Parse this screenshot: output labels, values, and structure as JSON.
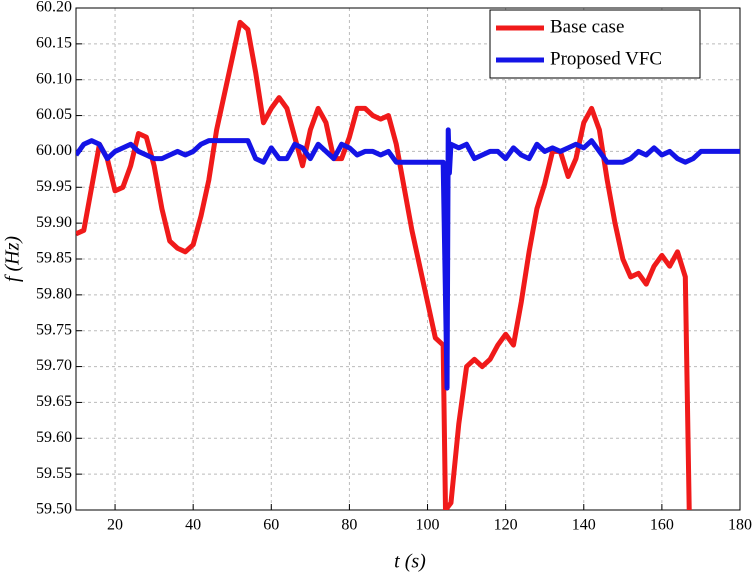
{
  "chart_data": {
    "type": "line",
    "xlabel": "t (s)",
    "ylabel": "f (Hz)",
    "xlim": [
      10,
      180
    ],
    "xticks": [
      20,
      40,
      60,
      80,
      100,
      120,
      140,
      160,
      180
    ],
    "ylim": [
      59.5,
      60.2
    ],
    "yticks": [
      {
        "value": 59.5,
        "label": "59.50"
      },
      59.55,
      {
        "value": 59.6,
        "label": "59.60"
      },
      59.65,
      {
        "value": 59.7,
        "label": "59.70"
      },
      59.75,
      {
        "value": 59.8,
        "label": "59.80"
      },
      59.85,
      {
        "value": 59.9,
        "label": "59.90"
      },
      59.95,
      {
        "value": 60.0,
        "label": "60.00"
      },
      60.05,
      {
        "value": 60.1,
        "label": "60.10"
      },
      60.15,
      {
        "value": 60.2,
        "label": "60.20"
      }
    ],
    "grid": true,
    "legend": "upper right",
    "series": [
      {
        "name": "Base case",
        "color": "#f01a1a",
        "x": [
          10,
          12,
          14,
          16,
          18,
          20,
          22,
          24,
          26,
          28,
          30,
          32,
          34,
          36,
          38,
          40,
          42,
          44,
          46,
          48,
          50,
          52,
          54,
          56,
          58,
          60,
          62,
          64,
          66,
          68,
          70,
          72,
          74,
          76,
          78,
          80,
          82,
          84,
          86,
          88,
          90,
          92,
          94,
          96,
          98,
          100,
          102,
          104,
          104.6,
          106,
          108,
          110,
          112,
          114,
          116,
          118,
          120,
          122,
          124,
          126,
          128,
          130,
          132,
          134,
          136,
          138,
          140,
          142,
          144,
          146,
          148,
          150,
          152,
          154,
          156,
          158,
          160,
          162,
          164,
          166,
          167
        ],
        "values": [
          59.885,
          59.89,
          59.95,
          60.01,
          59.99,
          59.945,
          59.95,
          59.98,
          60.025,
          60.02,
          59.98,
          59.92,
          59.875,
          59.865,
          59.86,
          59.87,
          59.91,
          59.96,
          60.03,
          60.08,
          60.13,
          60.18,
          60.17,
          60.11,
          60.04,
          60.06,
          60.075,
          60.06,
          60.02,
          59.98,
          60.03,
          60.06,
          60.04,
          59.99,
          59.99,
          60.02,
          60.06,
          60.06,
          60.05,
          60.045,
          60.05,
          60.01,
          59.95,
          59.89,
          59.84,
          59.79,
          59.74,
          59.73,
          59.5,
          59.51,
          59.62,
          59.7,
          59.71,
          59.7,
          59.71,
          59.73,
          59.745,
          59.73,
          59.79,
          59.86,
          59.92,
          59.955,
          60.0,
          60.0,
          59.965,
          59.99,
          60.04,
          60.06,
          60.03,
          59.96,
          59.9,
          59.85,
          59.825,
          59.83,
          59.815,
          59.84,
          59.855,
          59.84,
          59.86,
          59.825,
          59.5
        ]
      },
      {
        "name": "Proposed VFC",
        "color": "#1414e6",
        "x": [
          10,
          12,
          14,
          16,
          18,
          20,
          22,
          24,
          26,
          28,
          30,
          32,
          34,
          36,
          38,
          40,
          42,
          44,
          46,
          48,
          50,
          52,
          54,
          56,
          58,
          60,
          62,
          64,
          66,
          68,
          70,
          72,
          74,
          76,
          78,
          80,
          82,
          84,
          86,
          88,
          90,
          92,
          94,
          96,
          98,
          100,
          102,
          104,
          105,
          105.3,
          105.6,
          106,
          108,
          110,
          112,
          114,
          116,
          118,
          120,
          122,
          124,
          126,
          128,
          130,
          132,
          134,
          136,
          138,
          140,
          142,
          144,
          146,
          148,
          150,
          152,
          154,
          156,
          158,
          160,
          162,
          164,
          166,
          168,
          170,
          175,
          180
        ],
        "values": [
          59.995,
          60.01,
          60.015,
          60.01,
          59.99,
          60.0,
          60.005,
          60.01,
          60.0,
          59.995,
          59.99,
          59.99,
          59.995,
          60.0,
          59.995,
          60.0,
          60.01,
          60.015,
          60.015,
          60.015,
          60.015,
          60.015,
          60.015,
          59.99,
          59.985,
          60.005,
          59.99,
          59.99,
          60.01,
          60.005,
          59.99,
          60.01,
          60.0,
          59.99,
          60.01,
          60.005,
          59.995,
          60.0,
          60.0,
          59.995,
          60.0,
          59.985,
          59.985,
          59.985,
          59.985,
          59.985,
          59.985,
          59.985,
          59.67,
          60.03,
          59.97,
          60.01,
          60.005,
          60.01,
          59.99,
          59.995,
          60.0,
          60.0,
          59.99,
          60.005,
          59.995,
          59.99,
          60.01,
          60.0,
          60.005,
          60.0,
          60.005,
          60.01,
          60.005,
          60.015,
          60.0,
          59.985,
          59.985,
          59.985,
          59.99,
          60.0,
          59.995,
          60.005,
          59.995,
          60.0,
          59.99,
          59.985,
          59.99,
          60.0,
          60.0,
          60.0
        ]
      }
    ]
  }
}
